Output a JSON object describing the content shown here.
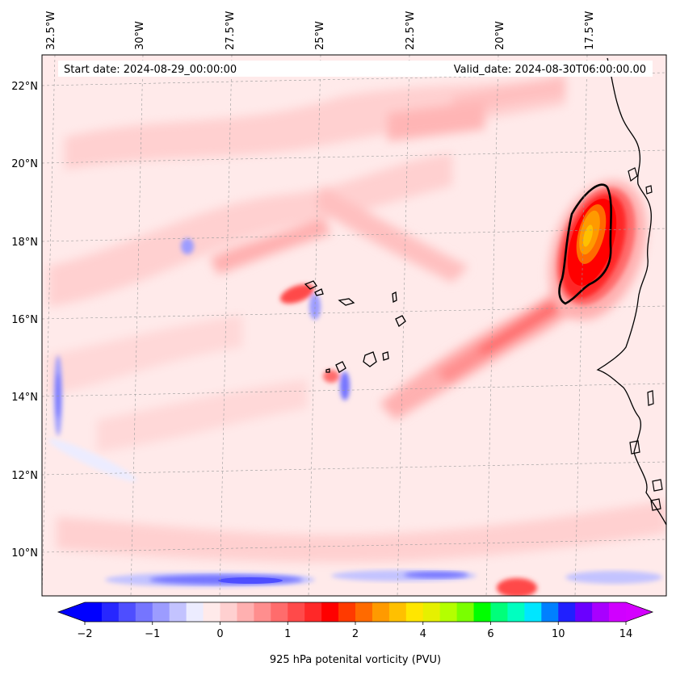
{
  "map": {
    "start_label": "Start date: 2024-08-29_00:00:00",
    "valid_label": "Valid_date: 2024-08-30T06:00:00.00",
    "lon_labels": [
      "32.5°W",
      "30°W",
      "27.5°W",
      "25°W",
      "22.5°W",
      "20°W",
      "17.5°W"
    ],
    "lat_labels": [
      "22°N",
      "20°N",
      "18°N",
      "16°N",
      "14°N",
      "12°N",
      "10°N"
    ]
  },
  "colorbar": {
    "title": "925 hPa potenital vorticity (PVU)",
    "tick_labels": [
      "−2",
      "−1",
      "0",
      "1",
      "2",
      "4",
      "6",
      "10",
      "14"
    ],
    "colors": [
      "#0000ff",
      "#2727ff",
      "#4e4eff",
      "#7575ff",
      "#9c9cff",
      "#c3c3ff",
      "#ececff",
      "#ffeaea",
      "#ffd0d0",
      "#ffb0b0",
      "#ff8e8e",
      "#ff6c6c",
      "#ff4a4a",
      "#ff2828",
      "#ff0000",
      "#ff3a00",
      "#ff6a00",
      "#ff9a00",
      "#ffc000",
      "#ffe600",
      "#e6f000",
      "#b4ff00",
      "#7aff00",
      "#00ff00",
      "#00ff7a",
      "#00ffc0",
      "#00e6ff",
      "#0080ff",
      "#2020ff",
      "#6a00ff",
      "#a800ff",
      "#d000ff"
    ],
    "under_color": "#0000ff",
    "over_color": "#d400ff"
  }
}
